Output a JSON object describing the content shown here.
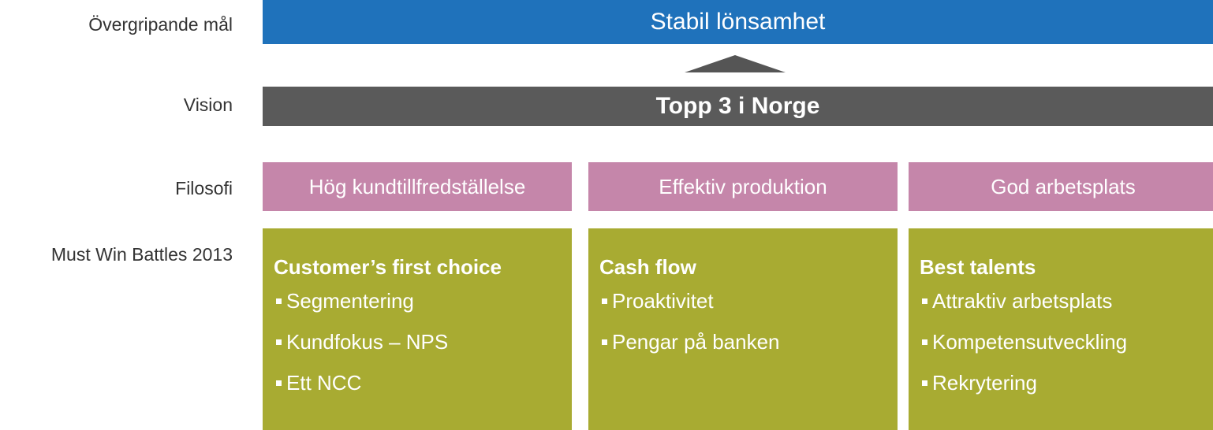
{
  "labels": [
    "Övergripande mål",
    "Vision",
    "Filosofi",
    "Must Win Battles 2013"
  ],
  "goal": "Stabil lönsamhet",
  "vision": "Topp 3 i Norge",
  "philosophy": [
    "Hög kundtillfredställelse",
    "Effektiv produktion",
    "God arbetsplats"
  ],
  "battles": [
    {
      "title": "Customer’s first choice",
      "items": [
        "Segmentering",
        "Kundfokus – NPS",
        "Ett NCC"
      ]
    },
    {
      "title": "Cash flow",
      "items": [
        "Proaktivitet",
        "Pengar på banken"
      ]
    },
    {
      "title": "Best talents",
      "items": [
        "Attraktiv arbetsplats",
        "Kompetensutveckling",
        "Rekrytering"
      ]
    }
  ]
}
